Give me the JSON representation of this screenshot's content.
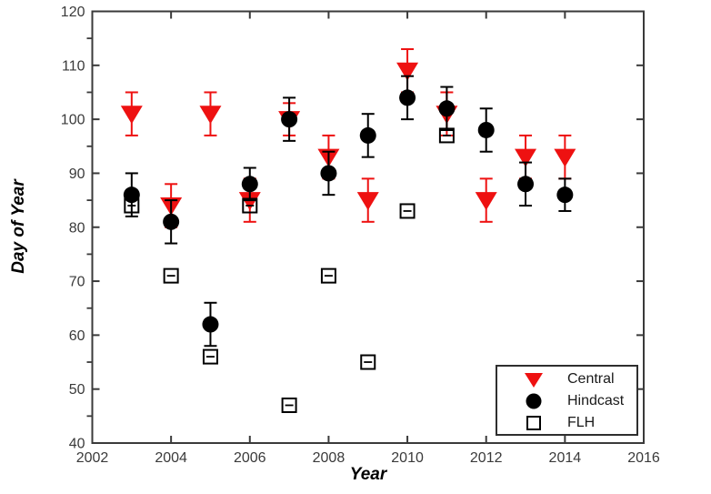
{
  "window": {
    "background": "#ffffff"
  },
  "chart_data": {
    "type": "scatter",
    "title": "",
    "xlabel": "Year",
    "ylabel": "Day of Year",
    "xlim": [
      2002,
      2016
    ],
    "ylim": [
      40,
      120
    ],
    "x_ticks": [
      2002,
      2004,
      2006,
      2008,
      2010,
      2012,
      2014,
      2016
    ],
    "y_ticks": [
      40,
      50,
      60,
      70,
      80,
      90,
      100,
      110,
      120
    ],
    "y_minor_ticks": [
      45,
      55,
      65,
      75,
      85,
      95,
      105,
      115
    ],
    "grid": false,
    "axis_color": "#3a3a3a",
    "tick_label_color": "#3a3a3a",
    "legend": {
      "position": "lower-right",
      "border_color": "#2e2e2e"
    },
    "series": [
      {
        "name": "Central",
        "marker": "triangle-down-filled",
        "color": "#ee1111",
        "x": [
          2003,
          2004,
          2005,
          2006,
          2007,
          2008,
          2009,
          2010,
          2011,
          2012,
          2013,
          2014
        ],
        "y": [
          101,
          84,
          101,
          85,
          100,
          93,
          85,
          109,
          101,
          85,
          93,
          93
        ],
        "yerr": [
          4,
          4,
          4,
          4,
          3,
          4,
          4,
          4,
          4,
          4,
          4,
          4
        ]
      },
      {
        "name": "Hindcast",
        "marker": "circle-filled",
        "color": "#000000",
        "x": [
          2003,
          2004,
          2005,
          2006,
          2007,
          2008,
          2009,
          2010,
          2011,
          2012,
          2013,
          2014
        ],
        "y": [
          86,
          81,
          62,
          88,
          100,
          90,
          97,
          104,
          102,
          98,
          88,
          86
        ],
        "yerr": [
          4,
          4,
          4,
          3,
          4,
          4,
          4,
          4,
          4,
          4,
          4,
          3
        ]
      },
      {
        "name": "FLH",
        "marker": "square-open",
        "color": "#000000",
        "x": [
          2003,
          2004,
          2005,
          2006,
          2007,
          2008,
          2009,
          2010,
          2011
        ],
        "y": [
          84,
          71,
          56,
          84,
          47,
          71,
          55,
          83,
          97
        ],
        "yerr": [
          0.5,
          0.5,
          0.5,
          0.5,
          0.5,
          0.5,
          0.5,
          0.5,
          0.5
        ]
      }
    ]
  }
}
